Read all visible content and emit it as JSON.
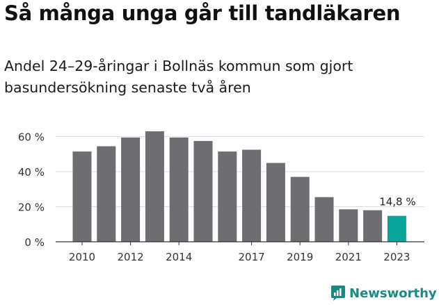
{
  "title": "Så många unga går till tandläkaren",
  "subtitle": "Andel 24–29-åringar i Bollnäs kommun som gjort basundersökning senaste två åren",
  "brand": {
    "name": "Newsworthy",
    "color": "#1a8a85"
  },
  "colors": {
    "bar": "#6e6d72",
    "highlight": "#0aa59a",
    "grid": "#dddddd",
    "axis": "#333333",
    "text": "#333333"
  },
  "chart_data": {
    "type": "bar",
    "title": "Så många unga går till tandläkaren",
    "x": [
      2010,
      2011,
      2012,
      2013,
      2014,
      2015,
      2016,
      2017,
      2018,
      2019,
      2020,
      2021,
      2022,
      2023
    ],
    "values": [
      51.5,
      54.5,
      59.5,
      63,
      59.5,
      57.5,
      51.5,
      52.5,
      45,
      37,
      25.5,
      18.5,
      18,
      14.8
    ],
    "highlight_index": 13,
    "highlight_label": "14,8 %",
    "x_tick_labels": [
      "2010",
      "2012",
      "2014",
      "2017",
      "2019",
      "2021",
      "2023"
    ],
    "y_ticks": [
      0,
      20,
      40,
      60
    ],
    "y_tick_labels": [
      "0 %",
      "20 %",
      "40 %",
      "60 %"
    ],
    "ylim": [
      0,
      65
    ],
    "grid": true,
    "legend": "none"
  }
}
